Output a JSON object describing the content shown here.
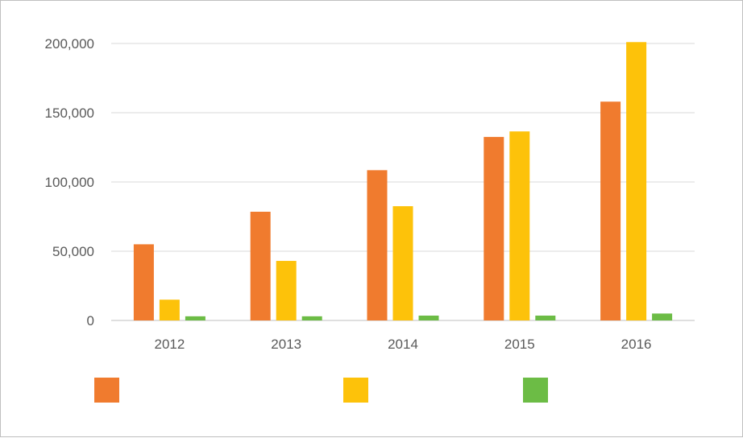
{
  "chart_data": {
    "type": "bar",
    "categories": [
      "2012",
      "2013",
      "2014",
      "2015",
      "2016"
    ],
    "series": [
      {
        "color": "#f07b2e",
        "values": [
          55000,
          78500,
          108500,
          132500,
          158000
        ]
      },
      {
        "color": "#fdc20a",
        "values": [
          15000,
          43000,
          82500,
          136500,
          201000
        ]
      },
      {
        "color": "#6cbc45",
        "values": [
          3000,
          3000,
          3500,
          3500,
          5000
        ]
      }
    ],
    "ylim": [
      0,
      200000
    ],
    "y_ticks": [
      "200,000",
      "150,000",
      "100,000",
      "50,000",
      "0"
    ],
    "y_tick_values": [
      200000,
      150000,
      100000,
      50000,
      0
    ],
    "grid": true,
    "legend": "bottom, swatches without labels"
  }
}
